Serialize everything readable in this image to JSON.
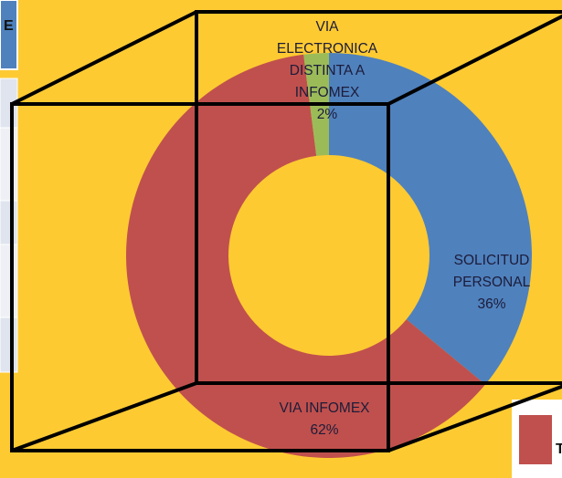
{
  "chart_data": {
    "type": "donut",
    "categories": [
      "SOLICITUD PERSONAL",
      "VIA INFOMEX",
      "VIA ELECTRONICA DISTINTA A INFOMEX"
    ],
    "values": [
      36,
      62,
      2
    ],
    "value_labels": [
      "36%",
      "62%",
      "2%"
    ],
    "colors": [
      "#4f81bd",
      "#c0504d",
      "#9bbb59"
    ]
  },
  "table_fragment_header": "E",
  "legend_fragment": "T"
}
